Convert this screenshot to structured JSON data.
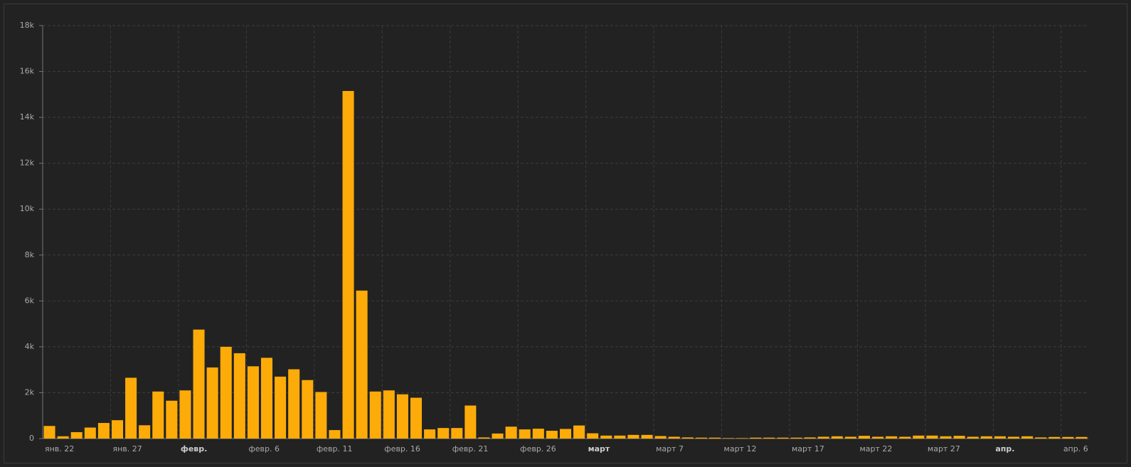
{
  "chart_data": {
    "type": "bar",
    "color": "#fdab08",
    "grid": true,
    "categories": [
      "янв. 22",
      null,
      null,
      null,
      null,
      "янв. 27",
      null,
      null,
      null,
      null,
      "февр.",
      null,
      null,
      null,
      null,
      "февр. 6",
      null,
      null,
      null,
      null,
      "февр. 11",
      null,
      null,
      null,
      null,
      "февр. 16",
      null,
      null,
      null,
      null,
      "февр. 21",
      null,
      null,
      null,
      null,
      "февр. 26",
      null,
      null,
      null,
      null,
      "март",
      null,
      null,
      null,
      null,
      "март 7",
      null,
      null,
      null,
      null,
      "март 12",
      null,
      null,
      null,
      null,
      "март 17",
      null,
      null,
      null,
      null,
      "март 22",
      null,
      null,
      null,
      null,
      "март 27",
      null,
      null,
      null,
      null,
      "апр.",
      null,
      null,
      null,
      null,
      "апр. 6",
      null
    ],
    "values": [
      550,
      100,
      280,
      480,
      680,
      800,
      2650,
      580,
      2050,
      1650,
      2100,
      4750,
      3100,
      4000,
      3720,
      3150,
      3520,
      2700,
      3020,
      2550,
      2030,
      370,
      15150,
      6450,
      2050,
      2100,
      1930,
      1780,
      400,
      460,
      460,
      1440,
      50,
      220,
      520,
      400,
      430,
      340,
      420,
      570,
      230,
      130,
      130,
      160,
      160,
      110,
      80,
      50,
      40,
      40,
      20,
      20,
      40,
      40,
      40,
      40,
      50,
      80,
      100,
      80,
      120,
      80,
      100,
      80,
      130,
      130,
      100,
      120,
      80,
      100,
      100,
      80,
      100,
      50,
      70,
      70,
      70
    ],
    "ylim": [
      0,
      18000
    ],
    "yticks": [
      0,
      {
        "value": 2000,
        "label": "2k"
      },
      {
        "value": 4000,
        "label": "4k"
      },
      {
        "value": 6000,
        "label": "6k"
      },
      {
        "value": 8000,
        "label": "8k"
      },
      {
        "value": 10000,
        "label": "10k"
      },
      {
        "value": 12000,
        "label": "12k"
      },
      {
        "value": 14000,
        "label": "14k"
      },
      {
        "value": 16000,
        "label": "16k"
      },
      {
        "value": 18000,
        "label": "18k"
      }
    ]
  }
}
